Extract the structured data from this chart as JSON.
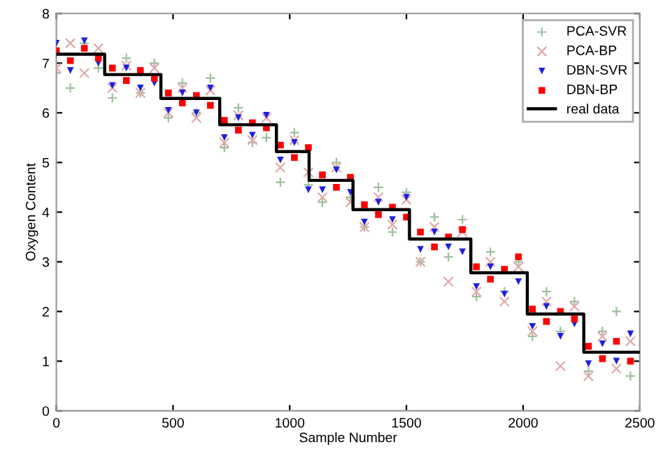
{
  "chart_data": {
    "type": "scatter",
    "xlabel": "Sample Number",
    "ylabel": "Oxygen Content",
    "xlim": [
      0,
      2500
    ],
    "xticks": [
      0,
      500,
      1000,
      1500,
      2000,
      2500
    ],
    "ylim": [
      0,
      8
    ],
    "yticks": [
      0,
      1,
      2,
      3,
      4,
      5,
      6,
      7,
      8
    ],
    "grid": false,
    "legend": "top right",
    "x": [
      0,
      60,
      120,
      180,
      240,
      300,
      360,
      420,
      480,
      540,
      600,
      660,
      720,
      780,
      840,
      900,
      960,
      1020,
      1080,
      1140,
      1200,
      1260,
      1320,
      1380,
      1440,
      1500,
      1560,
      1620,
      1680,
      1740,
      1800,
      1860,
      1920,
      1980,
      2040,
      2100,
      2160,
      2220,
      2280,
      2340,
      2400,
      2460
    ],
    "series": [
      {
        "name": "PCA-SVR",
        "color": "#9fbf9f",
        "marker": "plus",
        "values": [
          6.8,
          6.5,
          7.4,
          6.9,
          6.3,
          7.1,
          6.4,
          7.0,
          5.9,
          6.6,
          6.0,
          6.7,
          5.3,
          6.1,
          5.4,
          5.5,
          4.6,
          5.6,
          4.55,
          4.2,
          5.0,
          4.3,
          3.7,
          4.5,
          3.6,
          4.4,
          3.0,
          3.9,
          3.1,
          3.85,
          2.3,
          3.2,
          2.4,
          3.0,
          1.5,
          2.4,
          1.6,
          2.2,
          0.8,
          1.6,
          2.0,
          0.7
        ]
      },
      {
        "name": "PCA-BP",
        "color": "#e0a8a8",
        "marker": "cross",
        "values": [
          6.9,
          7.4,
          6.8,
          7.3,
          6.5,
          6.95,
          6.4,
          6.9,
          6.0,
          6.5,
          5.9,
          6.45,
          5.4,
          5.95,
          5.45,
          5.9,
          4.9,
          5.45,
          4.8,
          4.3,
          4.9,
          4.2,
          3.7,
          4.3,
          3.75,
          4.25,
          3.0,
          3.7,
          2.6,
          3.6,
          2.4,
          3.0,
          2.2,
          2.9,
          1.6,
          2.2,
          0.9,
          2.1,
          0.7,
          1.5,
          0.85,
          1.4
        ]
      },
      {
        "name": "DBN-SVR",
        "color": "#1f1fdf",
        "marker": "triangle",
        "values": [
          7.4,
          6.85,
          7.45,
          7.0,
          6.55,
          6.9,
          6.5,
          6.6,
          6.05,
          6.4,
          6.0,
          6.5,
          5.5,
          5.9,
          5.55,
          5.95,
          5.05,
          5.4,
          4.45,
          4.45,
          4.85,
          4.4,
          3.8,
          4.2,
          3.85,
          4.3,
          3.25,
          3.6,
          3.3,
          3.2,
          2.5,
          2.9,
          2.35,
          2.6,
          1.7,
          2.1,
          1.5,
          1.75,
          0.95,
          1.35,
          1.0,
          1.55
        ]
      },
      {
        "name": "DBN-BP",
        "color": "#ff0000",
        "marker": "square",
        "values": [
          7.25,
          7.05,
          7.3,
          7.1,
          6.9,
          6.65,
          6.85,
          6.7,
          6.4,
          6.2,
          6.35,
          6.15,
          5.85,
          5.65,
          5.8,
          5.7,
          5.35,
          5.1,
          5.3,
          4.75,
          4.5,
          4.7,
          4.15,
          3.95,
          4.1,
          3.9,
          3.6,
          3.3,
          3.5,
          3.65,
          2.9,
          2.65,
          2.85,
          3.1,
          2.05,
          1.8,
          2.0,
          1.85,
          1.3,
          1.05,
          1.4,
          1.0
        ]
      },
      {
        "name": "real data",
        "type": "line",
        "color": "#000000",
        "marker": "none",
        "line_style": "solid",
        "x": [
          0,
          207,
          207,
          448,
          448,
          700,
          700,
          943,
          943,
          1083,
          1083,
          1271,
          1271,
          1513,
          1513,
          1776,
          1776,
          2018,
          2018,
          2260,
          2260,
          2500
        ],
        "values": [
          7.18,
          7.18,
          6.77,
          6.77,
          6.29,
          6.29,
          5.76,
          5.76,
          5.22,
          5.22,
          4.64,
          4.64,
          4.05,
          4.05,
          3.46,
          3.46,
          2.78,
          2.78,
          1.95,
          1.95,
          1.18,
          1.18
        ]
      }
    ]
  }
}
